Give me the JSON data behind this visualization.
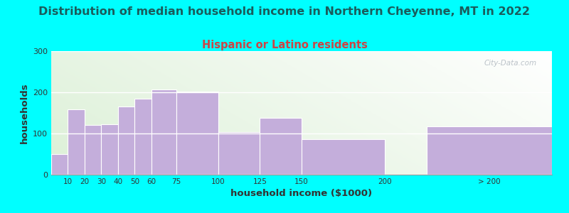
{
  "title": "Distribution of median household income in Northern Cheyenne, MT in 2022",
  "subtitle": "Hispanic or Latino residents",
  "xlabel": "household income ($1000)",
  "ylabel": "households",
  "background_outer": "#00FFFF",
  "bar_color": "#C4AEDB",
  "title_fontsize": 11.5,
  "title_color": "#1a5c5c",
  "subtitle_fontsize": 10.5,
  "subtitle_color": "#CC4444",
  "categories": [
    "10",
    "20",
    "30",
    "40",
    "50",
    "60",
    "75",
    "100",
    "125",
    "150",
    "200",
    "> 200"
  ],
  "values": [
    50,
    158,
    120,
    123,
    165,
    185,
    207,
    202,
    104,
    138,
    87,
    118
  ],
  "lefts": [
    0,
    10,
    20,
    30,
    40,
    50,
    60,
    75,
    100,
    125,
    150,
    225
  ],
  "widths": [
    10,
    10,
    10,
    10,
    10,
    10,
    15,
    25,
    25,
    25,
    50,
    75
  ],
  "xlim": [
    0,
    300
  ],
  "ylim": [
    0,
    300
  ],
  "yticks": [
    0,
    100,
    200,
    300
  ],
  "xtick_positions": [
    10,
    20,
    30,
    40,
    50,
    60,
    75,
    100,
    125,
    150,
    200,
    262.5
  ],
  "xtick_labels": [
    "10",
    "20",
    "30",
    "40",
    "50",
    "60",
    "75",
    "100",
    "125",
    "150",
    "200",
    "> 200"
  ],
  "watermark": "City-Data.com"
}
